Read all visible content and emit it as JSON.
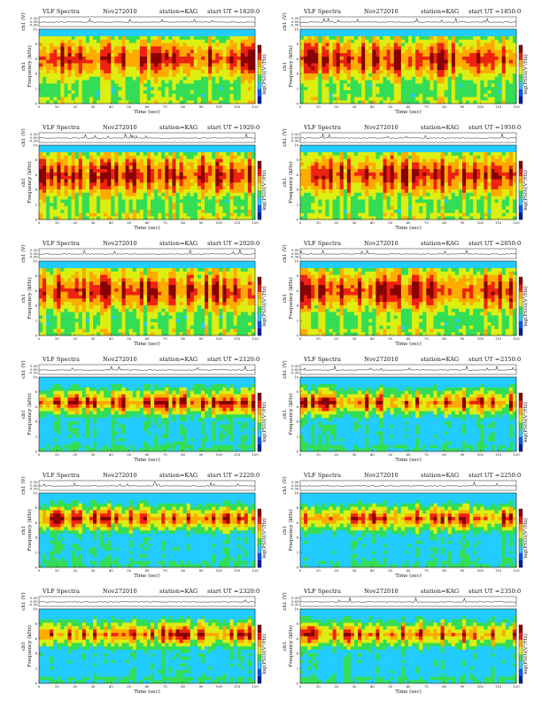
{
  "chart_data": {
    "type": "heatmap",
    "title_left": "VLF Spectra",
    "date": "Nov272010",
    "station": "station=KAG",
    "start_prefix": "start  UT  =",
    "xlabel": "Time (sec)",
    "ylabel_freq": "Frequency (kHz)",
    "ylabel_ch": "ch1",
    "wave_label": "ch1 (V)",
    "colorbar_label": "log(PSD)(V²/Hz)",
    "x_ticks": [
      "0",
      "10",
      "20",
      "30",
      "40",
      "50",
      "60",
      "70",
      "80",
      "90",
      "100",
      "110",
      "120"
    ],
    "y_ticks": [
      "0",
      "2",
      "4",
      "6",
      "8",
      "10"
    ],
    "wave_ticks": [
      "0.30",
      "0.00",
      "-0.30"
    ],
    "xlim": [
      0,
      120
    ],
    "ylim": [
      0,
      10
    ],
    "colorscale": [
      "#001a99",
      "#0055ff",
      "#22ccff",
      "#33dd55",
      "#ddee11",
      "#ffaa00",
      "#ee2211",
      "#880000"
    ],
    "panels": [
      {
        "start": "1820:0"
      },
      {
        "start": "1850:0"
      },
      {
        "start": "1920:0"
      },
      {
        "start": "1950:0"
      },
      {
        "start": "2020:0"
      },
      {
        "start": "2050:0"
      },
      {
        "start": "2120:0"
      },
      {
        "start": "2150:0"
      },
      {
        "start": "2220:0"
      },
      {
        "start": "2250:0"
      },
      {
        "start": "2320:0"
      },
      {
        "start": "2350:0"
      }
    ]
  }
}
